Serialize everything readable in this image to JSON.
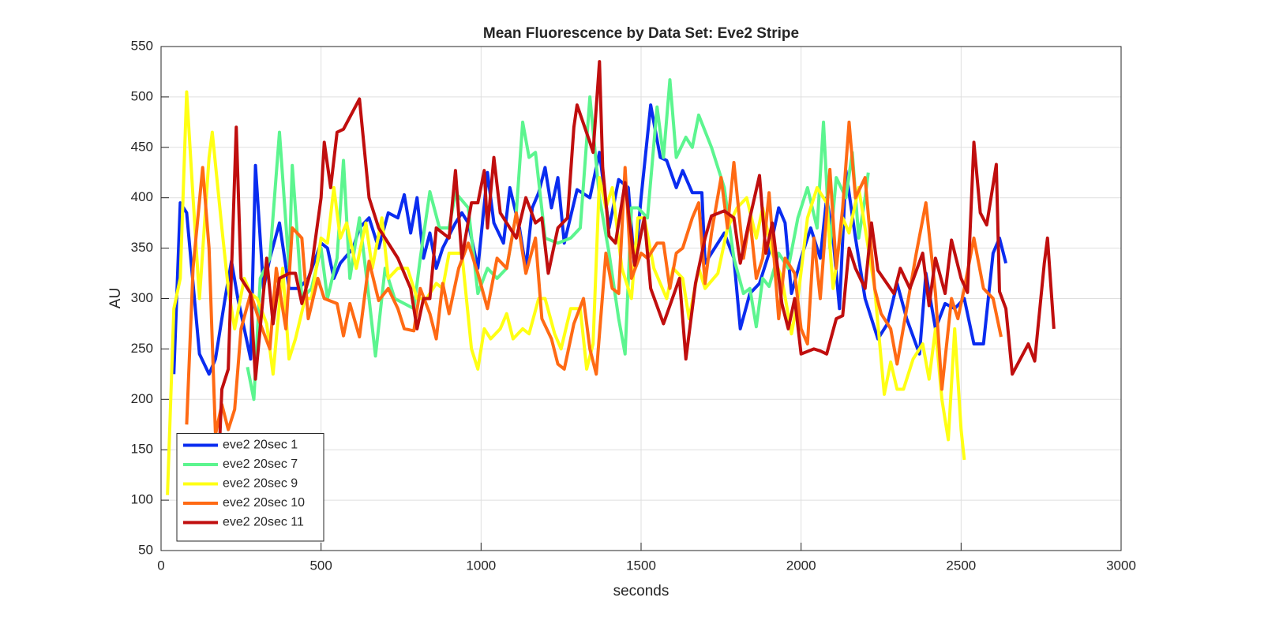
{
  "chart_data": {
    "type": "line",
    "title": "Mean Fluorescence by Data Set: Eve2 Stripe",
    "x_label": "seconds",
    "y_label": "AU",
    "xlim": [
      0,
      3000
    ],
    "xticks": [
      0,
      500,
      1000,
      1500,
      2000,
      2500,
      3000
    ],
    "ylim": [
      50,
      550
    ],
    "yticks": [
      50,
      100,
      150,
      200,
      250,
      300,
      350,
      400,
      450,
      500,
      550
    ],
    "grid": true,
    "legend": "lower-left",
    "series": [
      {
        "name": "eve2 20sec 1",
        "color": "#0a2cf0",
        "x": [
          40,
          60,
          80,
          120,
          150,
          170,
          200,
          220,
          240,
          260,
          280,
          295,
          320,
          340,
          370,
          400,
          430,
          460,
          500,
          520,
          540,
          560,
          600,
          620,
          650,
          680,
          710,
          740,
          760,
          780,
          800,
          820,
          840,
          860,
          880,
          920,
          940,
          960,
          990,
          1020,
          1040,
          1070,
          1090,
          1120,
          1140,
          1160,
          1180,
          1200,
          1220,
          1240,
          1260,
          1300,
          1340,
          1370,
          1400,
          1430,
          1460,
          1480,
          1500,
          1530,
          1560,
          1580,
          1610,
          1630,
          1660,
          1690,
          1700,
          1730,
          1760,
          1790,
          1810,
          1840,
          1870,
          1900,
          1930,
          1950,
          1970,
          2000,
          2030,
          2060,
          2080,
          2100,
          2120,
          2140,
          2170,
          2200,
          2240,
          2270,
          2300,
          2330,
          2370,
          2390,
          2420,
          2450,
          2480,
          2510,
          2540,
          2570,
          2600,
          2620,
          2640
        ],
        "values": [
          225,
          395,
          385,
          245,
          225,
          240,
          300,
          337,
          300,
          270,
          240,
          432,
          310,
          340,
          375,
          310,
          310,
          320,
          355,
          350,
          320,
          335,
          350,
          370,
          380,
          350,
          385,
          380,
          403,
          365,
          400,
          340,
          365,
          330,
          350,
          375,
          385,
          375,
          330,
          425,
          375,
          355,
          410,
          370,
          330,
          390,
          405,
          430,
          390,
          420,
          355,
          408,
          400,
          445,
          370,
          418,
          410,
          330,
          400,
          492,
          440,
          437,
          410,
          427,
          405,
          405,
          335,
          350,
          365,
          340,
          270,
          305,
          315,
          345,
          390,
          375,
          305,
          340,
          370,
          340,
          400,
          360,
          290,
          427,
          360,
          300,
          260,
          275,
          315,
          280,
          245,
          325,
          270,
          295,
          290,
          300,
          255,
          255,
          345,
          360,
          335
        ]
      },
      {
        "name": "eve2 20sec 7",
        "color": "#5cf58f",
        "x": [
          270,
          290,
          310,
          340,
          370,
          400,
          410,
          440,
          470,
          500,
          520,
          550,
          570,
          590,
          620,
          650,
          670,
          700,
          730,
          760,
          790,
          810,
          840,
          870,
          900,
          920,
          960,
          990,
          1020,
          1050,
          1080,
          1110,
          1130,
          1150,
          1170,
          1200,
          1240,
          1280,
          1310,
          1340,
          1370,
          1400,
          1430,
          1450,
          1470,
          1490,
          1520,
          1550,
          1570,
          1590,
          1610,
          1640,
          1660,
          1680,
          1720,
          1760,
          1790,
          1820,
          1840,
          1860,
          1880,
          1900,
          1930,
          1960,
          1990,
          2020,
          2050,
          2070,
          2090,
          2110,
          2140,
          2160,
          2180,
          2200,
          2210
        ],
        "values": [
          232,
          200,
          320,
          340,
          465,
          330,
          432,
          300,
          310,
          350,
          300,
          340,
          437,
          320,
          380,
          300,
          243,
          330,
          300,
          295,
          290,
          340,
          406,
          370,
          370,
          405,
          390,
          305,
          330,
          320,
          330,
          385,
          475,
          440,
          445,
          360,
          355,
          360,
          370,
          500,
          400,
          345,
          280,
          245,
          390,
          390,
          380,
          490,
          440,
          517,
          440,
          460,
          450,
          482,
          450,
          410,
          340,
          305,
          310,
          272,
          320,
          312,
          345,
          330,
          380,
          410,
          370,
          475,
          350,
          420,
          400,
          445,
          360,
          400,
          425
        ]
      },
      {
        "name": "eve2 20sec 9",
        "color": "#ffff14",
        "x": [
          20,
          40,
          60,
          80,
          100,
          120,
          150,
          160,
          190,
          210,
          230,
          260,
          280,
          300,
          330,
          350,
          380,
          400,
          420,
          450,
          470,
          500,
          520,
          540,
          560,
          580,
          610,
          640,
          660,
          690,
          710,
          740,
          770,
          800,
          830,
          860,
          880,
          900,
          940,
          970,
          990,
          1010,
          1030,
          1060,
          1080,
          1100,
          1130,
          1150,
          1180,
          1200,
          1230,
          1250,
          1280,
          1310,
          1330,
          1350,
          1370,
          1390,
          1410,
          1440,
          1470,
          1490,
          1510,
          1540,
          1580,
          1600,
          1630,
          1650,
          1680,
          1700,
          1740,
          1770,
          1800,
          1830,
          1860,
          1880,
          1910,
          1940,
          1970,
          1990,
          2020,
          2050,
          2080,
          2100,
          2130,
          2150,
          2180,
          2200,
          2230,
          2260,
          2280,
          2300,
          2320,
          2350,
          2380,
          2400,
          2420,
          2440,
          2460,
          2480,
          2500,
          2510
        ],
        "values": [
          105,
          290,
          320,
          505,
          400,
          300,
          440,
          465,
          370,
          310,
          270,
          320,
          305,
          300,
          275,
          225,
          330,
          240,
          260,
          300,
          300,
          360,
          355,
          410,
          360,
          375,
          330,
          375,
          330,
          380,
          320,
          330,
          330,
          300,
          300,
          315,
          310,
          345,
          345,
          250,
          230,
          270,
          260,
          270,
          285,
          260,
          270,
          265,
          300,
          300,
          265,
          250,
          290,
          290,
          230,
          255,
          420,
          390,
          410,
          330,
          300,
          380,
          380,
          330,
          300,
          330,
          320,
          280,
          330,
          310,
          325,
          370,
          390,
          400,
          360,
          390,
          345,
          320,
          265,
          300,
          380,
          410,
          395,
          310,
          380,
          365,
          410,
          370,
          310,
          205,
          237,
          210,
          210,
          240,
          255,
          220,
          270,
          200,
          160,
          270,
          170,
          140
        ]
      },
      {
        "name": "eve2 20sec 10",
        "color": "#ff6a14",
        "x": [
          80,
          100,
          130,
          150,
          170,
          190,
          210,
          230,
          250,
          280,
          310,
          340,
          360,
          390,
          410,
          440,
          460,
          490,
          510,
          550,
          570,
          590,
          620,
          650,
          680,
          710,
          740,
          760,
          790,
          810,
          840,
          860,
          880,
          900,
          930,
          960,
          990,
          1020,
          1050,
          1080,
          1110,
          1140,
          1170,
          1190,
          1220,
          1240,
          1260,
          1290,
          1320,
          1340,
          1360,
          1390,
          1410,
          1430,
          1450,
          1470,
          1500,
          1520,
          1550,
          1570,
          1590,
          1610,
          1630,
          1660,
          1680,
          1700,
          1720,
          1750,
          1770,
          1790,
          1820,
          1840,
          1860,
          1880,
          1900,
          1930,
          1950,
          1980,
          2000,
          2020,
          2040,
          2060,
          2090,
          2110,
          2130,
          2150,
          2170,
          2200,
          2230,
          2250,
          2280,
          2300,
          2330,
          2360,
          2390,
          2420,
          2440,
          2470,
          2490,
          2510,
          2540,
          2570,
          2600,
          2625
        ],
        "values": [
          175,
          330,
          430,
          350,
          165,
          195,
          170,
          190,
          270,
          305,
          275,
          250,
          330,
          270,
          370,
          360,
          280,
          320,
          300,
          295,
          263,
          295,
          262,
          337,
          298,
          310,
          290,
          270,
          268,
          310,
          285,
          260,
          315,
          285,
          330,
          355,
          325,
          290,
          340,
          330,
          385,
          325,
          360,
          280,
          260,
          235,
          230,
          275,
          300,
          250,
          225,
          345,
          310,
          305,
          430,
          320,
          345,
          340,
          355,
          355,
          310,
          345,
          350,
          380,
          395,
          315,
          365,
          420,
          370,
          435,
          340,
          380,
          320,
          340,
          405,
          280,
          340,
          325,
          270,
          255,
          360,
          300,
          428,
          330,
          390,
          475,
          400,
          420,
          310,
          285,
          270,
          235,
          290,
          345,
          395,
          305,
          210,
          300,
          280,
          310,
          360,
          310,
          300,
          262
        ]
      },
      {
        "name": "eve2 20sec 11",
        "color": "#c00e0e",
        "x": [
          170,
          190,
          210,
          235,
          250,
          280,
          295,
          330,
          350,
          370,
          400,
          420,
          440,
          470,
          500,
          510,
          530,
          550,
          570,
          620,
          650,
          680,
          740,
          780,
          800,
          820,
          840,
          860,
          900,
          920,
          940,
          970,
          990,
          1010,
          1020,
          1040,
          1060,
          1110,
          1140,
          1170,
          1190,
          1210,
          1240,
          1270,
          1290,
          1300,
          1340,
          1350,
          1370,
          1380,
          1400,
          1420,
          1450,
          1480,
          1510,
          1530,
          1570,
          1620,
          1640,
          1670,
          1700,
          1720,
          1760,
          1790,
          1810,
          1840,
          1870,
          1890,
          1910,
          1940,
          1960,
          1980,
          2000,
          2040,
          2060,
          2080,
          2110,
          2130,
          2150,
          2170,
          2200,
          2220,
          2240,
          2290,
          2310,
          2340,
          2380,
          2400,
          2420,
          2450,
          2470,
          2500,
          2520,
          2540,
          2560,
          2580,
          2610,
          2620,
          2640,
          2660,
          2710,
          2730,
          2760,
          2770,
          2790
        ],
        "values": [
          60,
          210,
          230,
          470,
          320,
          305,
          220,
          340,
          275,
          320,
          325,
          325,
          295,
          330,
          400,
          455,
          410,
          465,
          468,
          498,
          400,
          370,
          340,
          310,
          270,
          300,
          300,
          370,
          360,
          427,
          340,
          395,
          395,
          427,
          370,
          440,
          385,
          360,
          400,
          375,
          380,
          325,
          370,
          380,
          470,
          492,
          455,
          445,
          535,
          430,
          362,
          355,
          415,
          333,
          380,
          310,
          275,
          320,
          240,
          315,
          360,
          382,
          387,
          380,
          335,
          380,
          422,
          345,
          375,
          295,
          270,
          300,
          245,
          250,
          248,
          245,
          280,
          283,
          350,
          330,
          310,
          375,
          328,
          305,
          330,
          310,
          345,
          293,
          340,
          305,
          358,
          320,
          306,
          455,
          385,
          373,
          433,
          307,
          290,
          225,
          255,
          238,
          335,
          360,
          270
        ]
      }
    ]
  }
}
